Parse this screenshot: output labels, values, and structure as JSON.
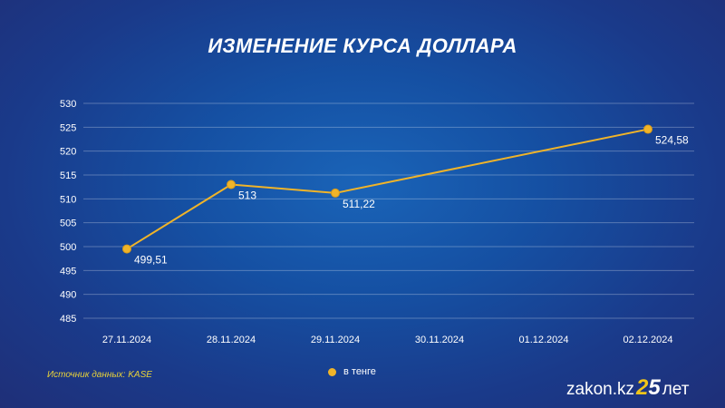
{
  "title": "ИЗМЕНЕНИЕ КУРСА ДОЛЛАРА",
  "source": "Источник данных: KASE",
  "legend": {
    "label": "в тенге",
    "color": "#f0b429"
  },
  "logo": {
    "domain": "zakon.kz",
    "number_first": "2",
    "number_second": "5",
    "suffix": "лет"
  },
  "chart_data": {
    "type": "line",
    "title": "ИЗМЕНЕНИЕ КУРСА ДОЛЛАРА",
    "xlabel": "",
    "ylabel": "",
    "categories": [
      "27.11.2024",
      "28.11.2024",
      "29.11.2024",
      "30.11.2024",
      "01.12.2024",
      "02.12.2024"
    ],
    "y_ticks": [
      485,
      490,
      495,
      500,
      505,
      510,
      515,
      520,
      525,
      530
    ],
    "ylim": [
      485,
      530
    ],
    "grid": true,
    "series": [
      {
        "name": "в тенге",
        "color": "#f0b429",
        "points": [
          {
            "x": "27.11.2024",
            "y": 499.51,
            "label": "499,51"
          },
          {
            "x": "28.11.2024",
            "y": 513,
            "label": "513"
          },
          {
            "x": "29.11.2024",
            "y": 511.22,
            "label": "511,22"
          },
          {
            "x": "02.12.2024",
            "y": 524.58,
            "label": "524,58"
          }
        ]
      }
    ]
  }
}
